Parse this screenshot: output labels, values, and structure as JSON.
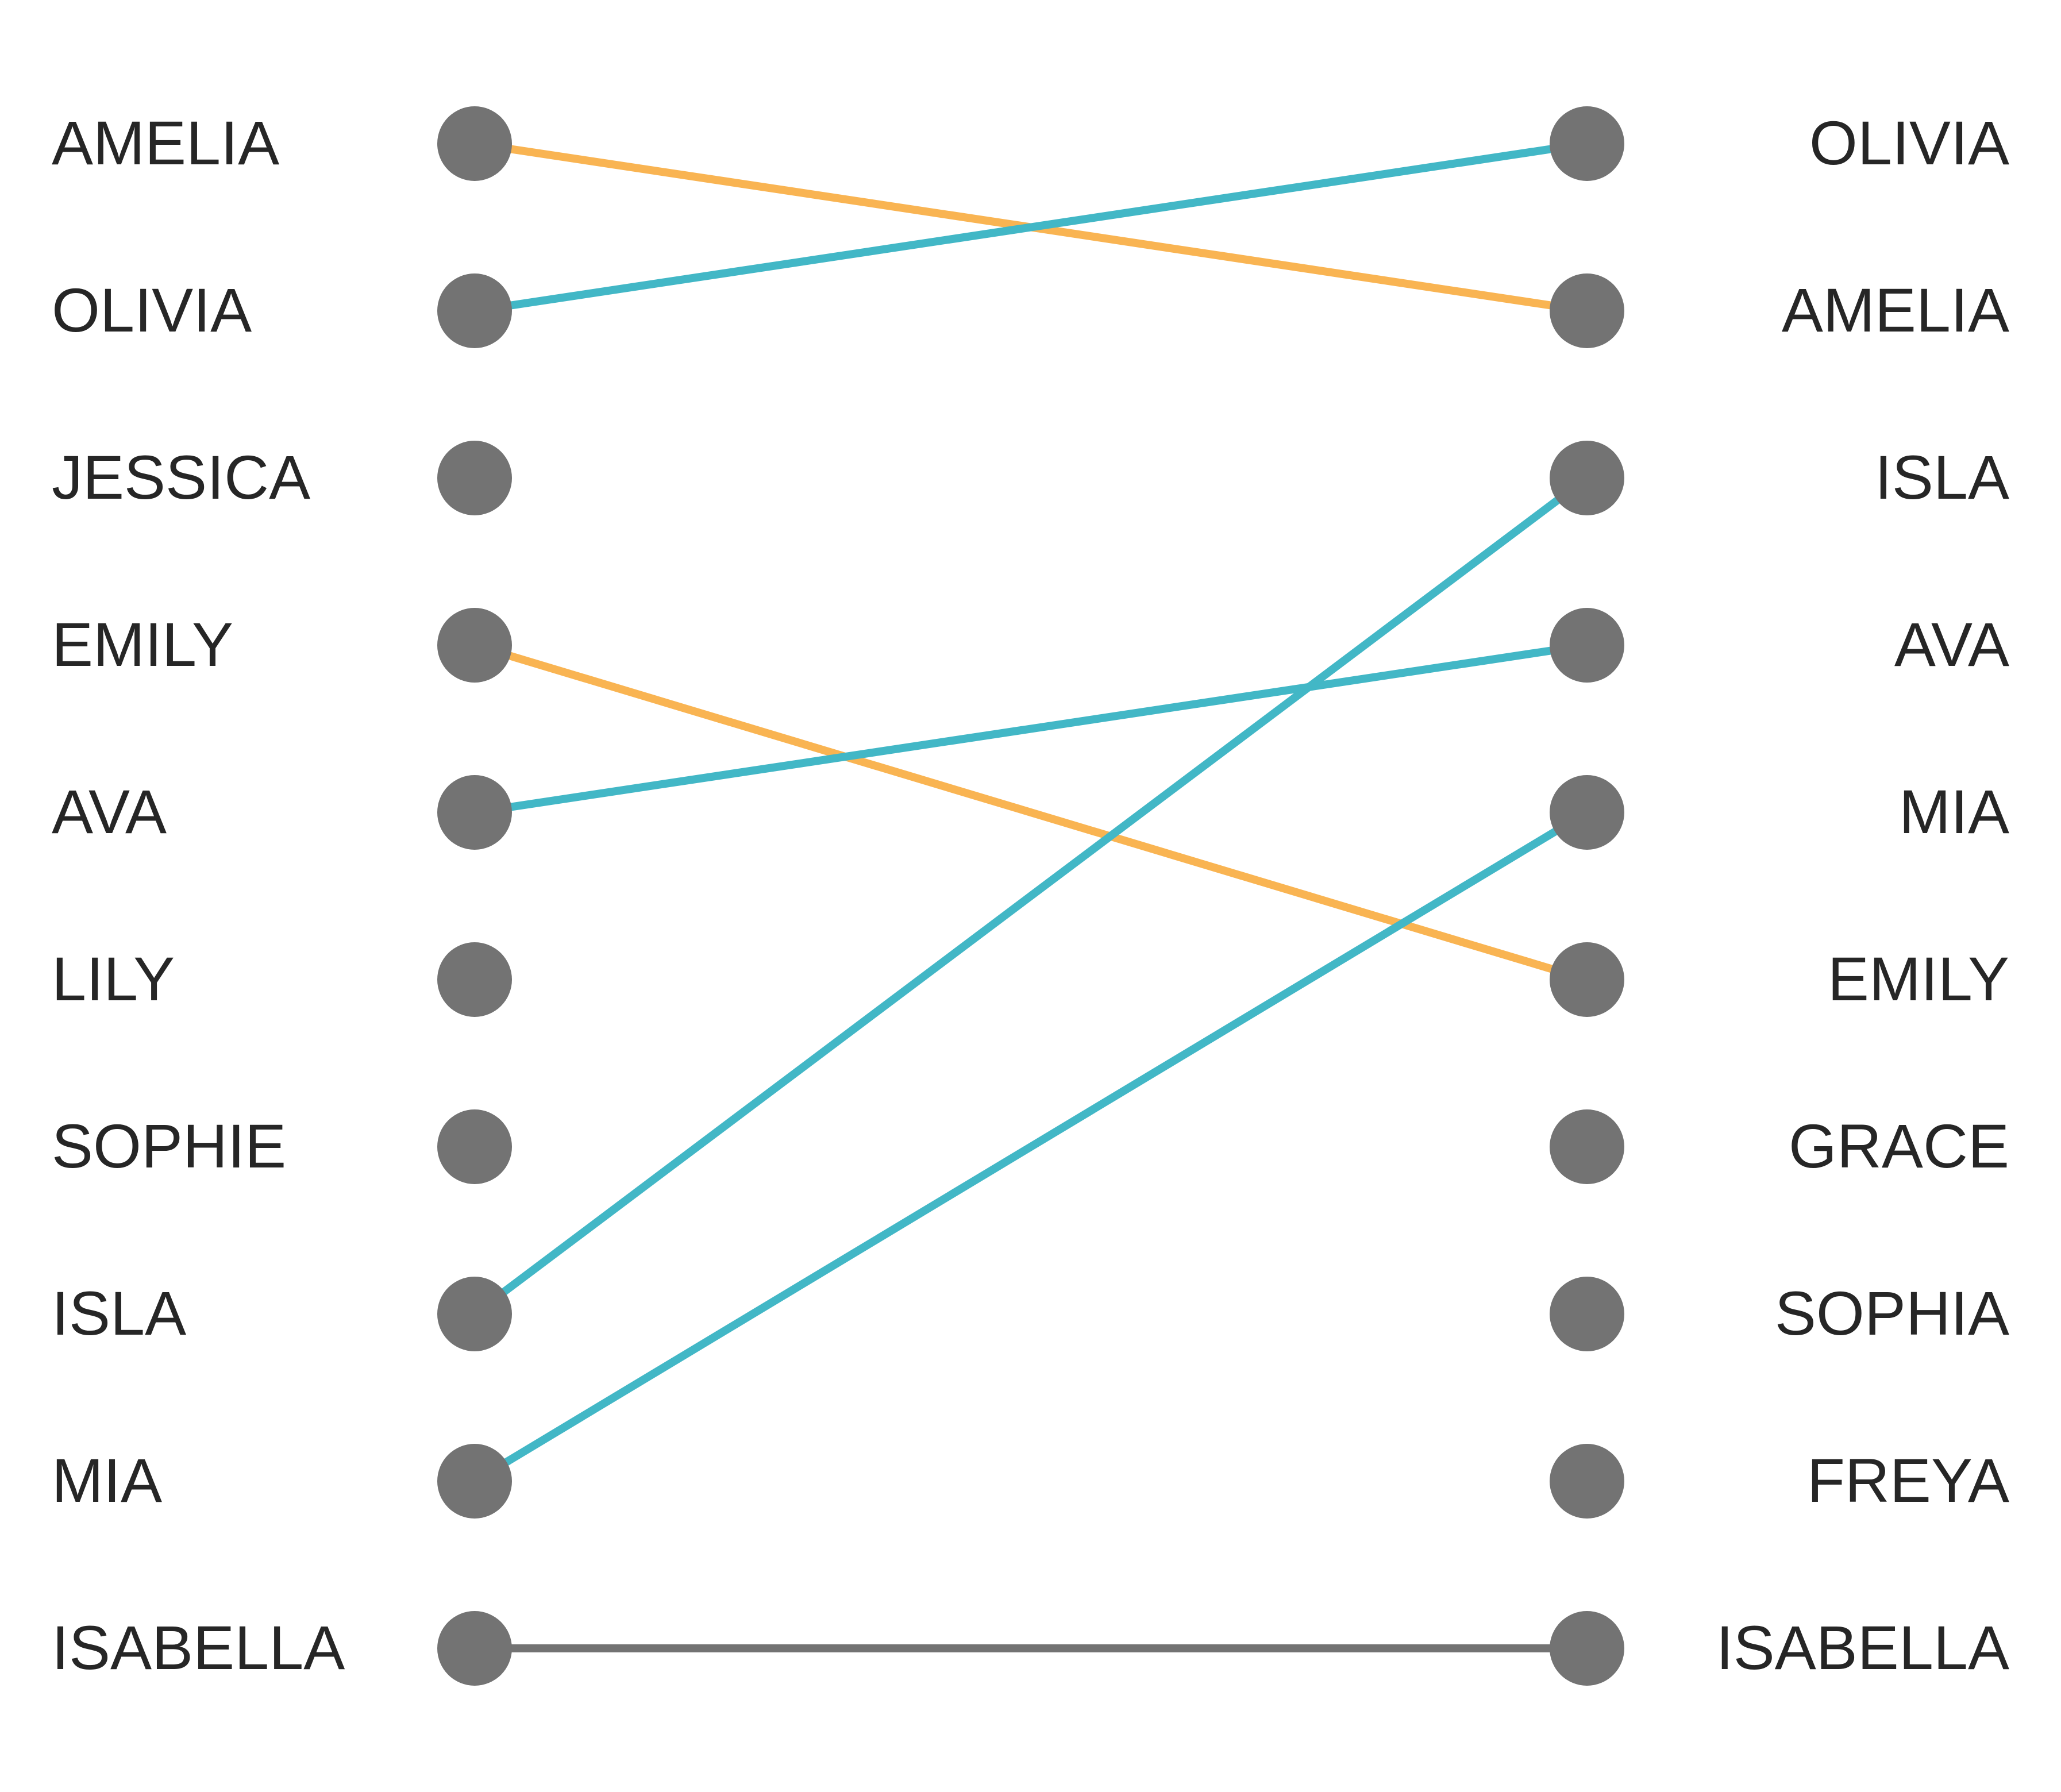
{
  "chart_data": {
    "type": "slope",
    "left_ranking": [
      "AMELIA",
      "OLIVIA",
      "JESSICA",
      "EMILY",
      "AVA",
      "LILY",
      "SOPHIE",
      "ISLA",
      "MIA",
      "ISABELLA"
    ],
    "right_ranking": [
      "OLIVIA",
      "AMELIA",
      "ISLA",
      "AVA",
      "MIA",
      "EMILY",
      "GRACE",
      "SOPHIA",
      "FREYA",
      "ISABELLA"
    ],
    "links": [
      {
        "name": "AMELIA",
        "from_rank": 1,
        "to_rank": 2,
        "change": "down",
        "color": "#F9B452"
      },
      {
        "name": "OLIVIA",
        "from_rank": 2,
        "to_rank": 1,
        "change": "up",
        "color": "#42B7C6"
      },
      {
        "name": "EMILY",
        "from_rank": 4,
        "to_rank": 6,
        "change": "down",
        "color": "#F9B452"
      },
      {
        "name": "AVA",
        "from_rank": 5,
        "to_rank": 4,
        "change": "up",
        "color": "#42B7C6"
      },
      {
        "name": "ISLA",
        "from_rank": 8,
        "to_rank": 3,
        "change": "up",
        "color": "#42B7C6"
      },
      {
        "name": "MIA",
        "from_rank": 9,
        "to_rank": 5,
        "change": "up",
        "color": "#42B7C6"
      },
      {
        "name": "ISABELLA",
        "from_rank": 10,
        "to_rank": 10,
        "change": "same",
        "color": "#737373"
      }
    ],
    "colors": {
      "up": "#42B7C6",
      "down": "#F9B452",
      "same": "#737373",
      "dot": "#737373",
      "label": "#262626"
    },
    "title": "",
    "xlabel": "",
    "ylabel": "",
    "grid": false,
    "legend": "none"
  }
}
